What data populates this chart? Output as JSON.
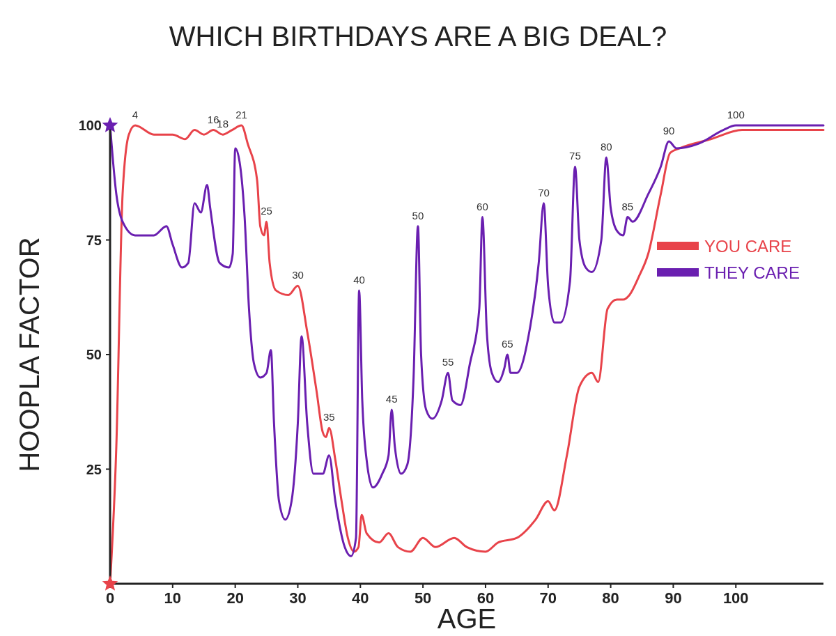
{
  "chart_data": {
    "type": "line",
    "title": "WHICH BIRTHDAYS ARE A BIG DEAL?",
    "xlabel": "AGE",
    "ylabel": "HOOPLA FACTOR",
    "xlim": [
      0,
      114
    ],
    "xticks": [
      0,
      10,
      20,
      30,
      40,
      50,
      60,
      70,
      80,
      90,
      100
    ],
    "ylim": [
      0,
      100
    ],
    "yticks": [
      25,
      50,
      75,
      100
    ],
    "grid": false,
    "legend": "right",
    "marker": "none",
    "line_style": "solid",
    "series": [
      {
        "name": "YOU CARE",
        "color": "#e8434a",
        "x": [
          0,
          1,
          2,
          3,
          4,
          7,
          10,
          12,
          13.5,
          15,
          16.5,
          18,
          19.5,
          21,
          22,
          23.5,
          24,
          24.6,
          25,
          25.5,
          26.5,
          28.5,
          30,
          31.5,
          33,
          34,
          34.5,
          35,
          36,
          37,
          38,
          39,
          39.7,
          40.2,
          41,
          43,
          44.5,
          46,
          48,
          50,
          52,
          55,
          57,
          60,
          62,
          65,
          68,
          70,
          71,
          73,
          75,
          77,
          78,
          79.5,
          81,
          82,
          83,
          84.5,
          86,
          88,
          89.5,
          91,
          96,
          101,
          114
        ],
        "values": [
          0,
          30,
          85,
          98,
          100,
          98,
          98,
          97,
          99,
          98,
          99,
          98,
          99,
          100,
          96,
          88,
          78,
          76,
          79,
          70,
          64,
          63,
          65,
          55,
          42,
          33,
          32,
          34,
          27,
          18,
          10,
          7,
          8,
          15,
          11,
          9,
          11,
          8,
          7,
          10,
          8,
          10,
          8,
          7,
          9,
          10,
          14,
          18,
          16,
          28,
          43,
          46,
          44,
          60,
          62,
          62,
          63,
          67,
          72,
          85,
          94,
          95,
          97,
          99,
          99
        ]
      },
      {
        "name": "THEY CARE",
        "color": "#6a1fb0",
        "x": [
          0,
          1,
          2,
          4,
          7,
          9,
          10,
          11.5,
          12.5,
          13.5,
          14.5,
          15.5,
          16,
          17.5,
          19,
          19.6,
          20,
          20.7,
          21.5,
          22.2,
          23,
          24,
          25,
          25.7,
          26.2,
          27,
          28,
          29,
          30,
          30.6,
          31.5,
          32.5,
          34,
          35,
          36,
          37.5,
          38.5,
          39.3,
          39.8,
          40.3,
          41,
          42,
          43.5,
          44.5,
          45,
          45.5,
          46.5,
          47.5,
          48.5,
          49.2,
          49.7,
          50.5,
          51.5,
          53,
          54,
          54.7,
          56,
          57.5,
          59,
          59.5,
          60.2,
          61,
          62,
          63,
          63.5,
          64,
          65,
          67,
          68.5,
          69.3,
          70,
          71,
          72,
          73.5,
          74.3,
          75,
          76,
          77,
          78.5,
          79.3,
          80,
          81,
          82,
          82.7,
          83.5,
          86,
          88,
          89.3,
          90.5,
          94,
          98,
          100,
          114
        ],
        "values": [
          100,
          85,
          79,
          76,
          76,
          78,
          74,
          69,
          70,
          83,
          81,
          87,
          82,
          70,
          69,
          72,
          95,
          92,
          80,
          60,
          48,
          45,
          46,
          51,
          35,
          18,
          14,
          18,
          35,
          54,
          35,
          24,
          24,
          28,
          18,
          8,
          6,
          10,
          64,
          40,
          27,
          21,
          24,
          28,
          38,
          30,
          24,
          26,
          45,
          78,
          50,
          38,
          36,
          40,
          46,
          40,
          39,
          48,
          60,
          80,
          55,
          46,
          44,
          47,
          50,
          46,
          46,
          55,
          70,
          83,
          65,
          57,
          57,
          66,
          91,
          75,
          69,
          68,
          75,
          93,
          82,
          77,
          76,
          80,
          79,
          85,
          91,
          96.5,
          95,
          96,
          99,
          100,
          100
        ]
      }
    ],
    "annotations": [
      {
        "text": "4",
        "x": 4,
        "y": 100
      },
      {
        "text": "16",
        "x": 16.5,
        "y": 99
      },
      {
        "text": "18",
        "x": 18,
        "y": 98
      },
      {
        "text": "21",
        "x": 21,
        "y": 100
      },
      {
        "text": "25",
        "x": 25,
        "y": 79
      },
      {
        "text": "30",
        "x": 30,
        "y": 65
      },
      {
        "text": "35",
        "x": 35,
        "y": 34
      },
      {
        "text": "40",
        "x": 39.8,
        "y": 64
      },
      {
        "text": "45",
        "x": 45,
        "y": 38
      },
      {
        "text": "50",
        "x": 49.2,
        "y": 78
      },
      {
        "text": "55",
        "x": 54,
        "y": 46
      },
      {
        "text": "60",
        "x": 59.5,
        "y": 80
      },
      {
        "text": "65",
        "x": 63.5,
        "y": 50
      },
      {
        "text": "70",
        "x": 69.3,
        "y": 83
      },
      {
        "text": "75",
        "x": 74.3,
        "y": 91
      },
      {
        "text": "80",
        "x": 79.3,
        "y": 93
      },
      {
        "text": "85",
        "x": 82.7,
        "y": 80
      },
      {
        "text": "90",
        "x": 89.3,
        "y": 96.5
      },
      {
        "text": "100",
        "x": 100,
        "y": 100
      }
    ]
  }
}
